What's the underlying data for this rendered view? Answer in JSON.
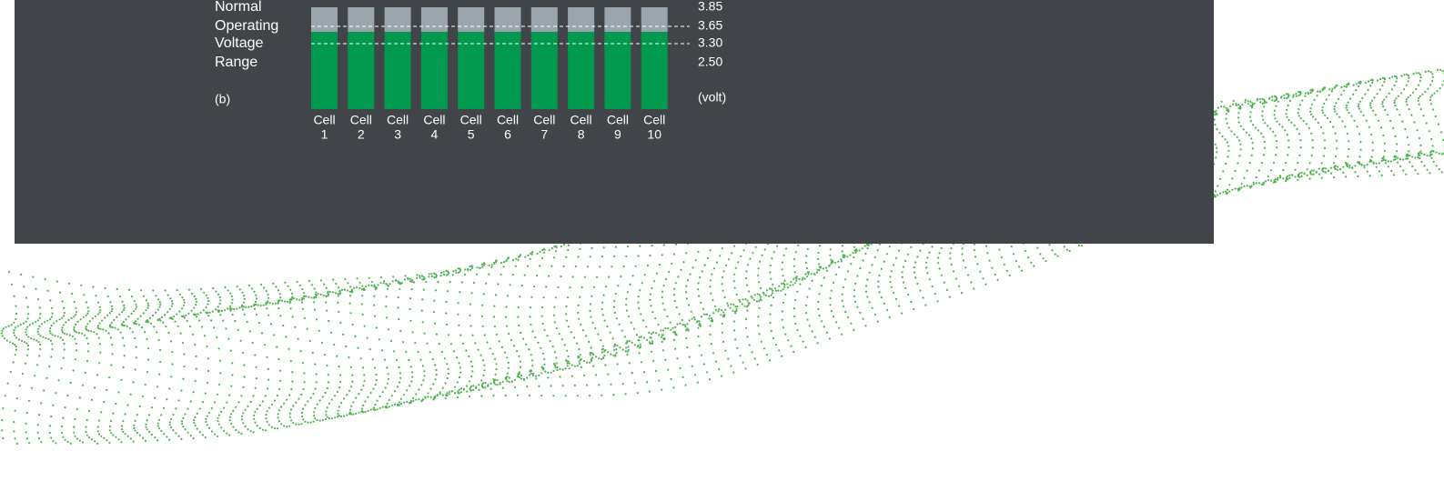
{
  "figure": {
    "label_lines": [
      "Normal",
      "Operating",
      "Voltage",
      "Range"
    ],
    "panel_tag": "(b)",
    "scale": [
      "3.85",
      "3.65",
      "3.30",
      "2.50"
    ],
    "unit": "(volt)",
    "cells": [
      {
        "name": "Cell",
        "number": "1"
      },
      {
        "name": "Cell",
        "number": "2"
      },
      {
        "name": "Cell",
        "number": "3"
      },
      {
        "name": "Cell",
        "number": "4"
      },
      {
        "name": "Cell",
        "number": "5"
      },
      {
        "name": "Cell",
        "number": "6"
      },
      {
        "name": "Cell",
        "number": "7"
      },
      {
        "name": "Cell",
        "number": "8"
      },
      {
        "name": "Cell",
        "number": "9"
      },
      {
        "name": "Cell",
        "number": "10"
      }
    ]
  }
}
